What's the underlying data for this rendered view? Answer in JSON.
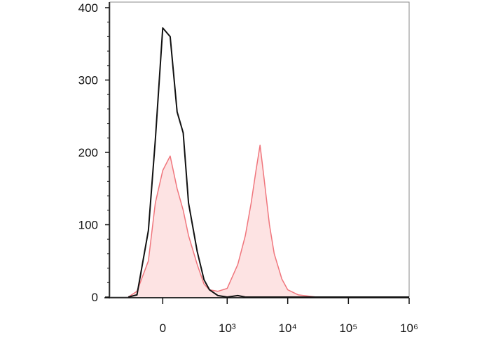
{
  "chart_data": {
    "type": "histogram-overlay",
    "x_scale": "biexponential",
    "linear_width": 175,
    "xlim": [
      -635,
      1000000
    ],
    "ylim": [
      0,
      400
    ],
    "yticks": [
      0,
      100,
      200,
      300,
      400
    ],
    "yminorticks": [
      20,
      40,
      60,
      80,
      120,
      140,
      160,
      180,
      220,
      240,
      260,
      280,
      320,
      340,
      360,
      380
    ],
    "xticks": [
      {
        "value": 0,
        "label": "0"
      },
      {
        "value": 1000,
        "label": "10³"
      },
      {
        "value": 10000,
        "label": "10⁴"
      },
      {
        "value": 100000,
        "label": "10⁵"
      },
      {
        "value": 1000000,
        "label": "10⁶"
      }
    ],
    "x": [
      -300,
      -200,
      -100,
      -50,
      0,
      50,
      100,
      150,
      200,
      300,
      400,
      500,
      700,
      1000,
      1500,
      2000,
      2500,
      3000,
      3500,
      4000,
      5000,
      6000,
      8000,
      10000,
      15000,
      30000,
      100000,
      1000000
    ],
    "series": [
      {
        "color": "#f0767d",
        "fill": "#fde3e3",
        "values": [
          0,
          8,
          50,
          130,
          175,
          195,
          150,
          120,
          85,
          45,
          18,
          10,
          8,
          12,
          45,
          85,
          130,
          175,
          210,
          170,
          100,
          60,
          25,
          10,
          3,
          0,
          0,
          0
        ]
      },
      {
        "color": "#111111",
        "fill": null,
        "values": [
          0,
          3,
          92,
          217,
          372,
          360,
          256,
          227,
          130,
          63,
          24,
          10,
          2,
          0,
          2,
          0,
          0,
          0,
          0,
          0,
          0,
          0,
          0,
          0,
          0,
          0,
          0,
          0
        ]
      }
    ]
  }
}
